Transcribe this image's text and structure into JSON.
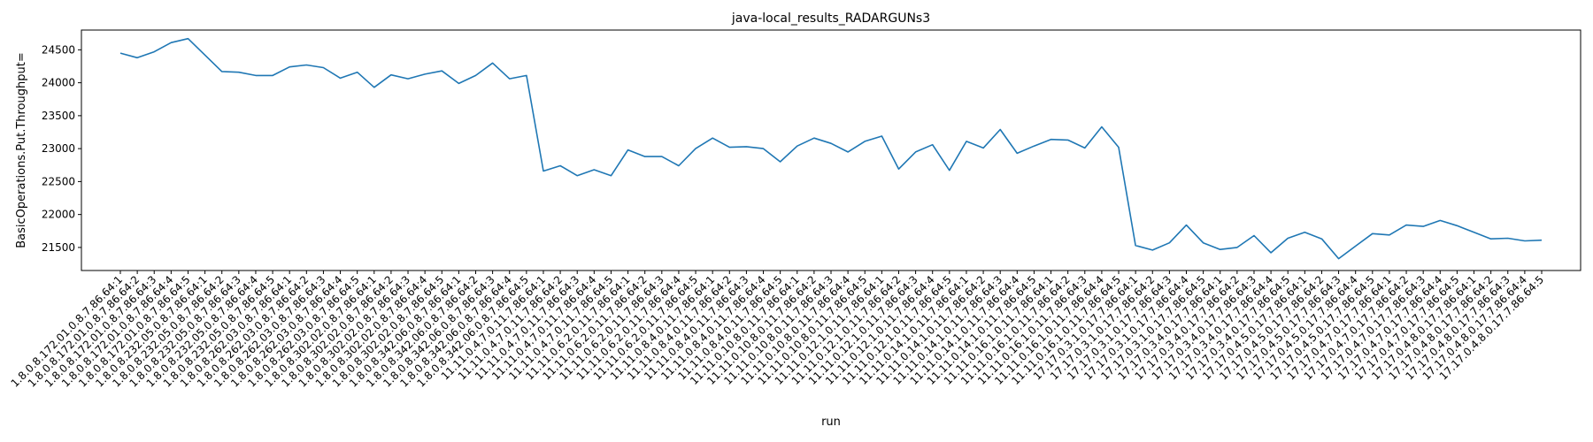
{
  "chart_data": {
    "type": "line",
    "title": "java-local_results_RADARGUNs3",
    "xlabel": "run",
    "ylabel": "BasicOperations.Put.Throughput=",
    "ylim": [
      21150,
      24800
    ],
    "yticks": [
      21500,
      22000,
      22500,
      23000,
      23500,
      24000,
      24500
    ],
    "grid": false,
    "legend": "none",
    "categories": [
      "1.8.0.8.172.01.0.8.7.86.64:1",
      "1.8.0.8.172.01.0.8.7.86.64:2",
      "1.8.0.8.172.01.0.8.7.86.64:3",
      "1.8.0.8.172.01.0.8.7.86.64:4",
      "1.8.0.8.172.01.0.8.7.86.64:5",
      "1.8.0.8.232.05.0.8.7.86.64:1",
      "1.8.0.8.232.05.0.8.7.86.64:2",
      "1.8.0.8.232.05.0.8.7.86.64:3",
      "1.8.0.8.232.05.0.8.7.86.64:4",
      "1.8.0.8.232.05.0.8.7.86.64:5",
      "1.8.0.8.262.03.0.8.7.86.64:1",
      "1.8.0.8.262.03.0.8.7.86.64:2",
      "1.8.0.8.262.03.0.8.7.86.64:3",
      "1.8.0.8.262.03.0.8.7.86.64:4",
      "1.8.0.8.262.03.0.8.7.86.64:5",
      "1.8.0.8.302.02.0.8.7.86.64:1",
      "1.8.0.8.302.02.0.8.7.86.64:2",
      "1.8.0.8.302.02.0.8.7.86.64:3",
      "1.8.0.8.302.02.0.8.7.86.64:4",
      "1.8.0.8.302.02.0.8.7.86.64:5",
      "1.8.0.8.342.06.0.8.7.86.64:1",
      "1.8.0.8.342.06.0.8.7.86.64:2",
      "1.8.0.8.342.06.0.8.7.86.64:3",
      "1.8.0.8.342.06.0.8.7.86.64:4",
      "1.8.0.8.342.06.0.8.7.86.64:5",
      "11.11.0.4.7.0.11.7.86.64:1",
      "11.11.0.4.7.0.11.7.86.64:2",
      "11.11.0.4.7.0.11.7.86.64:3",
      "11.11.0.4.7.0.11.7.86.64:4",
      "11.11.0.4.7.0.11.7.86.64:5",
      "11.11.0.6.2.0.11.7.86.64:1",
      "11.11.0.6.2.0.11.7.86.64:2",
      "11.11.0.6.2.0.11.7.86.64:3",
      "11.11.0.6.2.0.11.7.86.64:4",
      "11.11.0.6.2.0.11.7.86.64:5",
      "11.11.0.8.4.0.11.7.86.64:1",
      "11.11.0.8.4.0.11.7.86.64:2",
      "11.11.0.8.4.0.11.7.86.64:3",
      "11.11.0.8.4.0.11.7.86.64:4",
      "11.11.0.8.4.0.11.7.86.64:5",
      "11.11.0.10.8.0.11.7.86.64:1",
      "11.11.0.10.8.0.11.7.86.64:2",
      "11.11.0.10.8.0.11.7.86.64:3",
      "11.11.0.10.8.0.11.7.86.64:4",
      "11.11.0.10.8.0.11.7.86.64:5",
      "11.11.0.12.1.0.11.7.86.64:1",
      "11.11.0.12.1.0.11.7.86.64:2",
      "11.11.0.12.1.0.11.7.86.64:3",
      "11.11.0.12.1.0.11.7.86.64:4",
      "11.11.0.12.1.0.11.7.86.64:5",
      "11.11.0.14.1.0.11.7.86.64:1",
      "11.11.0.14.1.0.11.7.86.64:2",
      "11.11.0.14.1.0.11.7.86.64:3",
      "11.11.0.14.1.0.11.7.86.64:4",
      "11.11.0.14.1.0.11.7.86.64:5",
      "11.11.0.16.1.0.11.7.86.64:1",
      "11.11.0.16.1.0.11.7.86.64:2",
      "11.11.0.16.1.0.11.7.86.64:3",
      "11.11.0.16.1.0.11.7.86.64:4",
      "11.11.0.16.1.0.11.7.86.64:5",
      "17.17.0.3.1.0.17.7.86.64:1",
      "17.17.0.3.1.0.17.7.86.64:2",
      "17.17.0.3.1.0.17.7.86.64:3",
      "17.17.0.3.1.0.17.7.86.64:4",
      "17.17.0.3.1.0.17.7.86.64:5",
      "17.17.0.3.4.0.17.7.86.64:1",
      "17.17.0.3.4.0.17.7.86.64:2",
      "17.17.0.3.4.0.17.7.86.64:3",
      "17.17.0.3.4.0.17.7.86.64:4",
      "17.17.0.3.4.0.17.7.86.64:5",
      "17.17.0.4.5.0.17.7.86.64:1",
      "17.17.0.4.5.0.17.7.86.64:2",
      "17.17.0.4.5.0.17.7.86.64:3",
      "17.17.0.4.5.0.17.7.86.64:4",
      "17.17.0.4.5.0.17.7.86.64:5",
      "17.17.0.4.7.0.17.7.86.64:1",
      "17.17.0.4.7.0.17.7.86.64:2",
      "17.17.0.4.7.0.17.7.86.64:3",
      "17.17.0.4.7.0.17.7.86.64:4",
      "17.17.0.4.7.0.17.7.86.64:5",
      "17.17.0.4.8.0.17.7.86.64:1",
      "17.17.0.4.8.0.17.7.86.64:2",
      "17.17.0.4.8.0.17.7.86.64:3",
      "17.17.0.4.8.0.17.7.86.64:4",
      "17.17.0.4.8.0.17.7.86.64:5"
    ],
    "series": [
      {
        "color": "#1f77b4",
        "values": [
          24450,
          24380,
          24470,
          24610,
          24670,
          24420,
          24170,
          24160,
          24110,
          24110,
          24240,
          24270,
          24230,
          24070,
          24160,
          23930,
          24120,
          24060,
          24130,
          24180,
          23990,
          24110,
          24300,
          24060,
          24110,
          22660,
          22740,
          22590,
          22680,
          22590,
          22980,
          22880,
          22880,
          22740,
          23000,
          23160,
          23020,
          23030,
          23000,
          22800,
          23040,
          23160,
          23080,
          22950,
          23110,
          23190,
          22690,
          22950,
          23060,
          22670,
          23110,
          23010,
          23290,
          22930,
          23040,
          23140,
          23130,
          23010,
          23330,
          23020,
          21530,
          21460,
          21570,
          21840,
          21570,
          21470,
          21500,
          21680,
          21420,
          21640,
          21730,
          21630,
          21330,
          21520,
          21710,
          21690,
          21840,
          21820,
          21910,
          21830,
          21730,
          21630,
          21640,
          21600,
          21610
        ]
      }
    ]
  }
}
